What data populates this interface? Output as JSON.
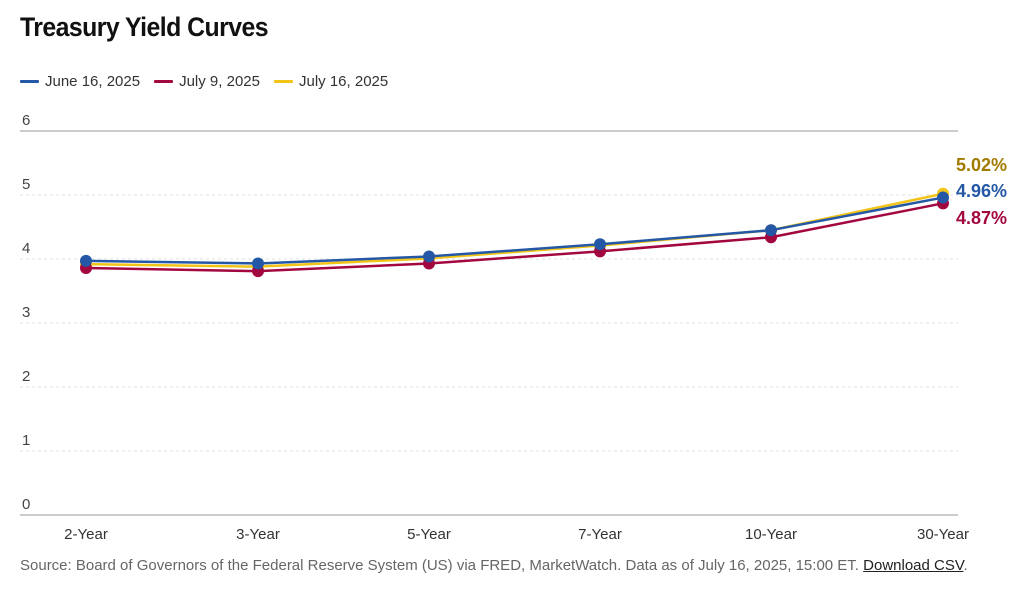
{
  "chart_data": {
    "type": "line",
    "title": "Treasury Yield Curves",
    "categories": [
      "2-Year",
      "3-Year",
      "5-Year",
      "7-Year",
      "10-Year",
      "30-Year"
    ],
    "ylim": [
      0,
      6
    ],
    "yticks": [
      0,
      1,
      2,
      3,
      4,
      5,
      6
    ],
    "xlabel": "",
    "ylabel": "",
    "legend_position": "top-left",
    "series": [
      {
        "name": "June 16, 2025",
        "color": "#2458a6",
        "values": [
          3.97,
          3.93,
          4.04,
          4.23,
          4.45,
          4.96
        ],
        "end_label": "4.96%"
      },
      {
        "name": "July 9, 2025",
        "color": "#a3073f",
        "values": [
          3.86,
          3.81,
          3.93,
          4.12,
          4.34,
          4.87
        ],
        "end_label": "4.87%"
      },
      {
        "name": "July 16, 2025",
        "color": "#f2c418",
        "values": [
          3.92,
          3.88,
          4.01,
          4.21,
          4.45,
          5.02
        ],
        "end_label": "5.02%",
        "label_color": "#a37a00"
      }
    ]
  },
  "source": {
    "text": "Source: Board of Governors of the Federal Reserve System (US) via FRED, MarketWatch. Data as of July 16, 2025, 15:00 ET.",
    "link": "Download CSV",
    "end": "."
  }
}
